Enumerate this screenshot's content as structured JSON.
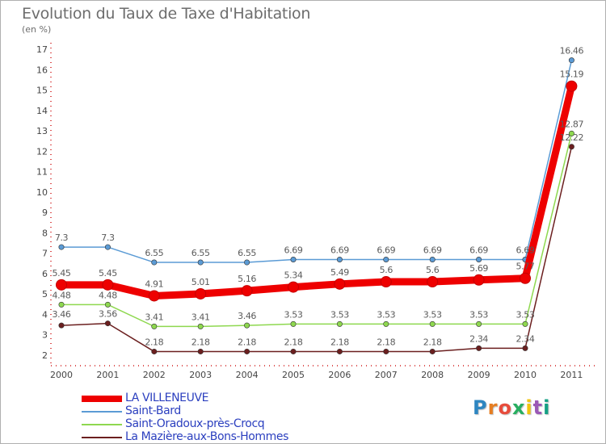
{
  "title": "Evolution du Taux de Taxe d'Habitation",
  "unit_label": "(en %)",
  "logo": {
    "letters": [
      "P",
      "r",
      "o",
      "x",
      "i",
      "t",
      "i"
    ],
    "colors": [
      "#2e86c1",
      "#e67e22",
      "#e74c3c",
      "#27ae60",
      "#f1c40f",
      "#9b59b6",
      "#16a085"
    ]
  },
  "chart_data": {
    "type": "line",
    "categories": [
      "2000",
      "2001",
      "2002",
      "2003",
      "2004",
      "2005",
      "2006",
      "2007",
      "2008",
      "2009",
      "2010",
      "2011"
    ],
    "ylim": [
      2,
      17
    ],
    "yticks": [
      "2",
      "3",
      "4",
      "5",
      "6",
      "7",
      "8",
      "9",
      "10",
      "11",
      "12",
      "13",
      "14",
      "15",
      "16",
      "17"
    ],
    "grid": false,
    "legend_position": "bottom-left",
    "series": [
      {
        "name": "La Mazière-aux-Bons-Hommes",
        "color": "#6b1f1f",
        "values": [
          3.46,
          3.56,
          2.18,
          2.18,
          2.18,
          2.18,
          2.18,
          2.18,
          2.18,
          2.34,
          2.34,
          12.22
        ],
        "labels": [
          "3.46",
          "3.56",
          "2.18",
          "2.18",
          "2.18",
          "2.18",
          "2.18",
          "2.18",
          "2.18",
          "2.34",
          "2.34",
          "12.22"
        ]
      },
      {
        "name": "Saint-Oradoux-près-Crocq",
        "color": "#8ed84f",
        "values": [
          4.48,
          4.48,
          3.41,
          3.41,
          3.46,
          3.53,
          3.53,
          3.53,
          3.53,
          3.53,
          3.53,
          12.87
        ],
        "labels": [
          "4.48",
          "4.48",
          "3.41",
          "3.41",
          "3.46",
          "3.53",
          "3.53",
          "3.53",
          "3.53",
          "3.53",
          "3.53",
          "12.87"
        ]
      },
      {
        "name": "Saint-Bard",
        "color": "#5b9bd5",
        "values": [
          7.3,
          7.3,
          6.55,
          6.55,
          6.55,
          6.69,
          6.69,
          6.69,
          6.69,
          6.69,
          6.69,
          16.46
        ],
        "labels": [
          "7.3",
          "7.3",
          "6.55",
          "6.55",
          "6.55",
          "6.69",
          "6.69",
          "6.69",
          "6.69",
          "6.69",
          "6.69",
          "16.46"
        ]
      },
      {
        "name": "LA VILLENEUVE",
        "color": "#ee0000",
        "values": [
          5.45,
          5.45,
          4.91,
          5.01,
          5.16,
          5.34,
          5.49,
          5.6,
          5.6,
          5.69,
          5.77,
          15.19
        ],
        "labels": [
          "5.45",
          "5.45",
          "4.91",
          "5.01",
          "5.16",
          "5.34",
          "5.49",
          "5.6",
          "5.6",
          "5.69",
          "5.77",
          "15.19"
        ]
      }
    ],
    "legend_order": [
      "LA VILLENEUVE",
      "Saint-Bard",
      "Saint-Oradoux-près-Crocq",
      "La Mazière-aux-Bons-Hommes"
    ]
  }
}
